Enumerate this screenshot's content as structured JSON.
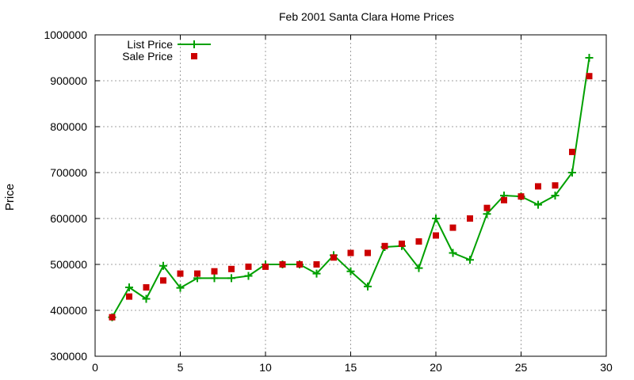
{
  "chart_data": {
    "type": "line",
    "title": "Feb 2001 Santa Clara Home Prices",
    "xlabel": "",
    "ylabel": "Price",
    "xlim": [
      0,
      30
    ],
    "ylim": [
      300000,
      1000000
    ],
    "xticks": [
      "0",
      "5",
      "10",
      "15",
      "20",
      "25",
      "30"
    ],
    "yticks": [
      "300000",
      "400000",
      "500000",
      "600000",
      "700000",
      "800000",
      "900000",
      "1000000"
    ],
    "grid": true,
    "legend_position": "top-left",
    "series": [
      {
        "name": "List Price",
        "style": "line with plus markers",
        "color": "#00a000",
        "x": [
          1,
          2,
          3,
          4,
          5,
          6,
          7,
          8,
          9,
          10,
          11,
          12,
          13,
          14,
          15,
          16,
          17,
          18,
          19,
          20,
          21,
          22,
          23,
          24,
          25,
          26,
          27,
          28,
          29
        ],
        "values": [
          385000,
          450000,
          425000,
          497000,
          449000,
          470000,
          470000,
          470000,
          475000,
          500000,
          500000,
          500000,
          480000,
          520000,
          485000,
          452000,
          538000,
          540000,
          492000,
          600000,
          525000,
          510000,
          610000,
          650000,
          648000,
          630000,
          650000,
          700000,
          950000
        ]
      },
      {
        "name": "Sale Price",
        "style": "square markers",
        "color": "#cc0000",
        "x": [
          1,
          2,
          3,
          4,
          5,
          6,
          7,
          8,
          9,
          10,
          11,
          12,
          13,
          14,
          15,
          16,
          17,
          18,
          19,
          20,
          21,
          22,
          23,
          24,
          25,
          26,
          27,
          28,
          29
        ],
        "values": [
          385000,
          430000,
          450000,
          465000,
          480000,
          480000,
          485000,
          490000,
          495000,
          495000,
          500000,
          500000,
          500000,
          515000,
          525000,
          525000,
          540000,
          545000,
          550000,
          563000,
          580000,
          600000,
          623000,
          640000,
          648000,
          670000,
          672000,
          745000,
          910000
        ]
      }
    ]
  }
}
